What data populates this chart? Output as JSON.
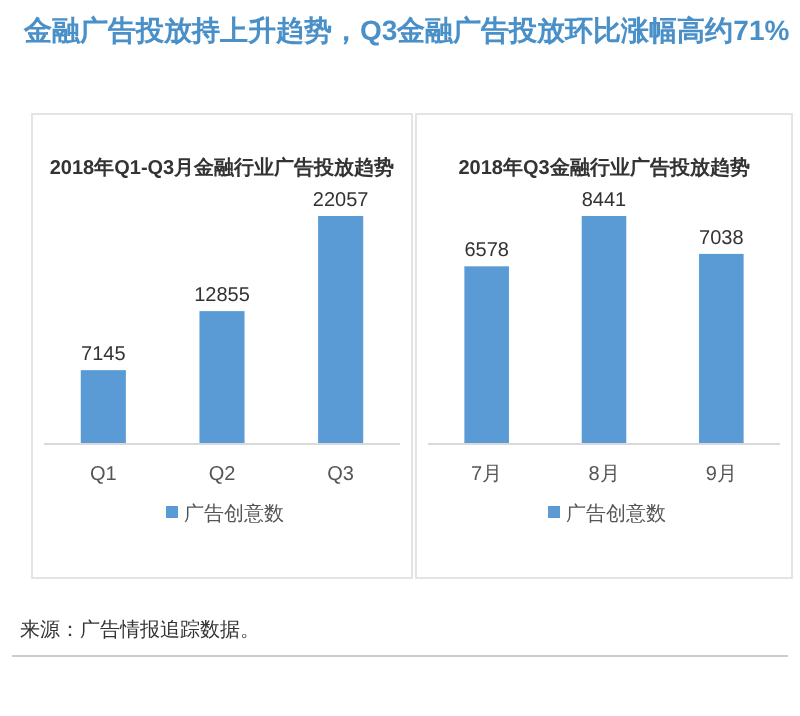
{
  "chart_data": [
    {
      "type": "bar",
      "title": "2018年Q1-Q3月金融行业广告投放趋势",
      "annotations": [
        "金融广告投放持上升趋势，Q3金融广告投放环比涨幅高约71%"
      ],
      "categories": [
        "Q1",
        "Q2",
        "Q3"
      ],
      "series": [
        {
          "name": "广告创意数",
          "color": "#5b9bd5",
          "values": [
            7145,
            12855,
            22057
          ]
        }
      ],
      "data_labels": true,
      "legend": "bottom"
    },
    {
      "type": "bar",
      "title": "2018年Q3金融行业广告投放趋势",
      "annotations": [
        "来源：广告情报追踪数据。"
      ],
      "categories": [
        "7月",
        "8月",
        "9月"
      ],
      "series": [
        {
          "name": "广告创意数",
          "color": "#5b9bd5",
          "values": [
            6578,
            8441,
            7038
          ]
        }
      ],
      "data_labels": true,
      "legend": "bottom"
    }
  ]
}
